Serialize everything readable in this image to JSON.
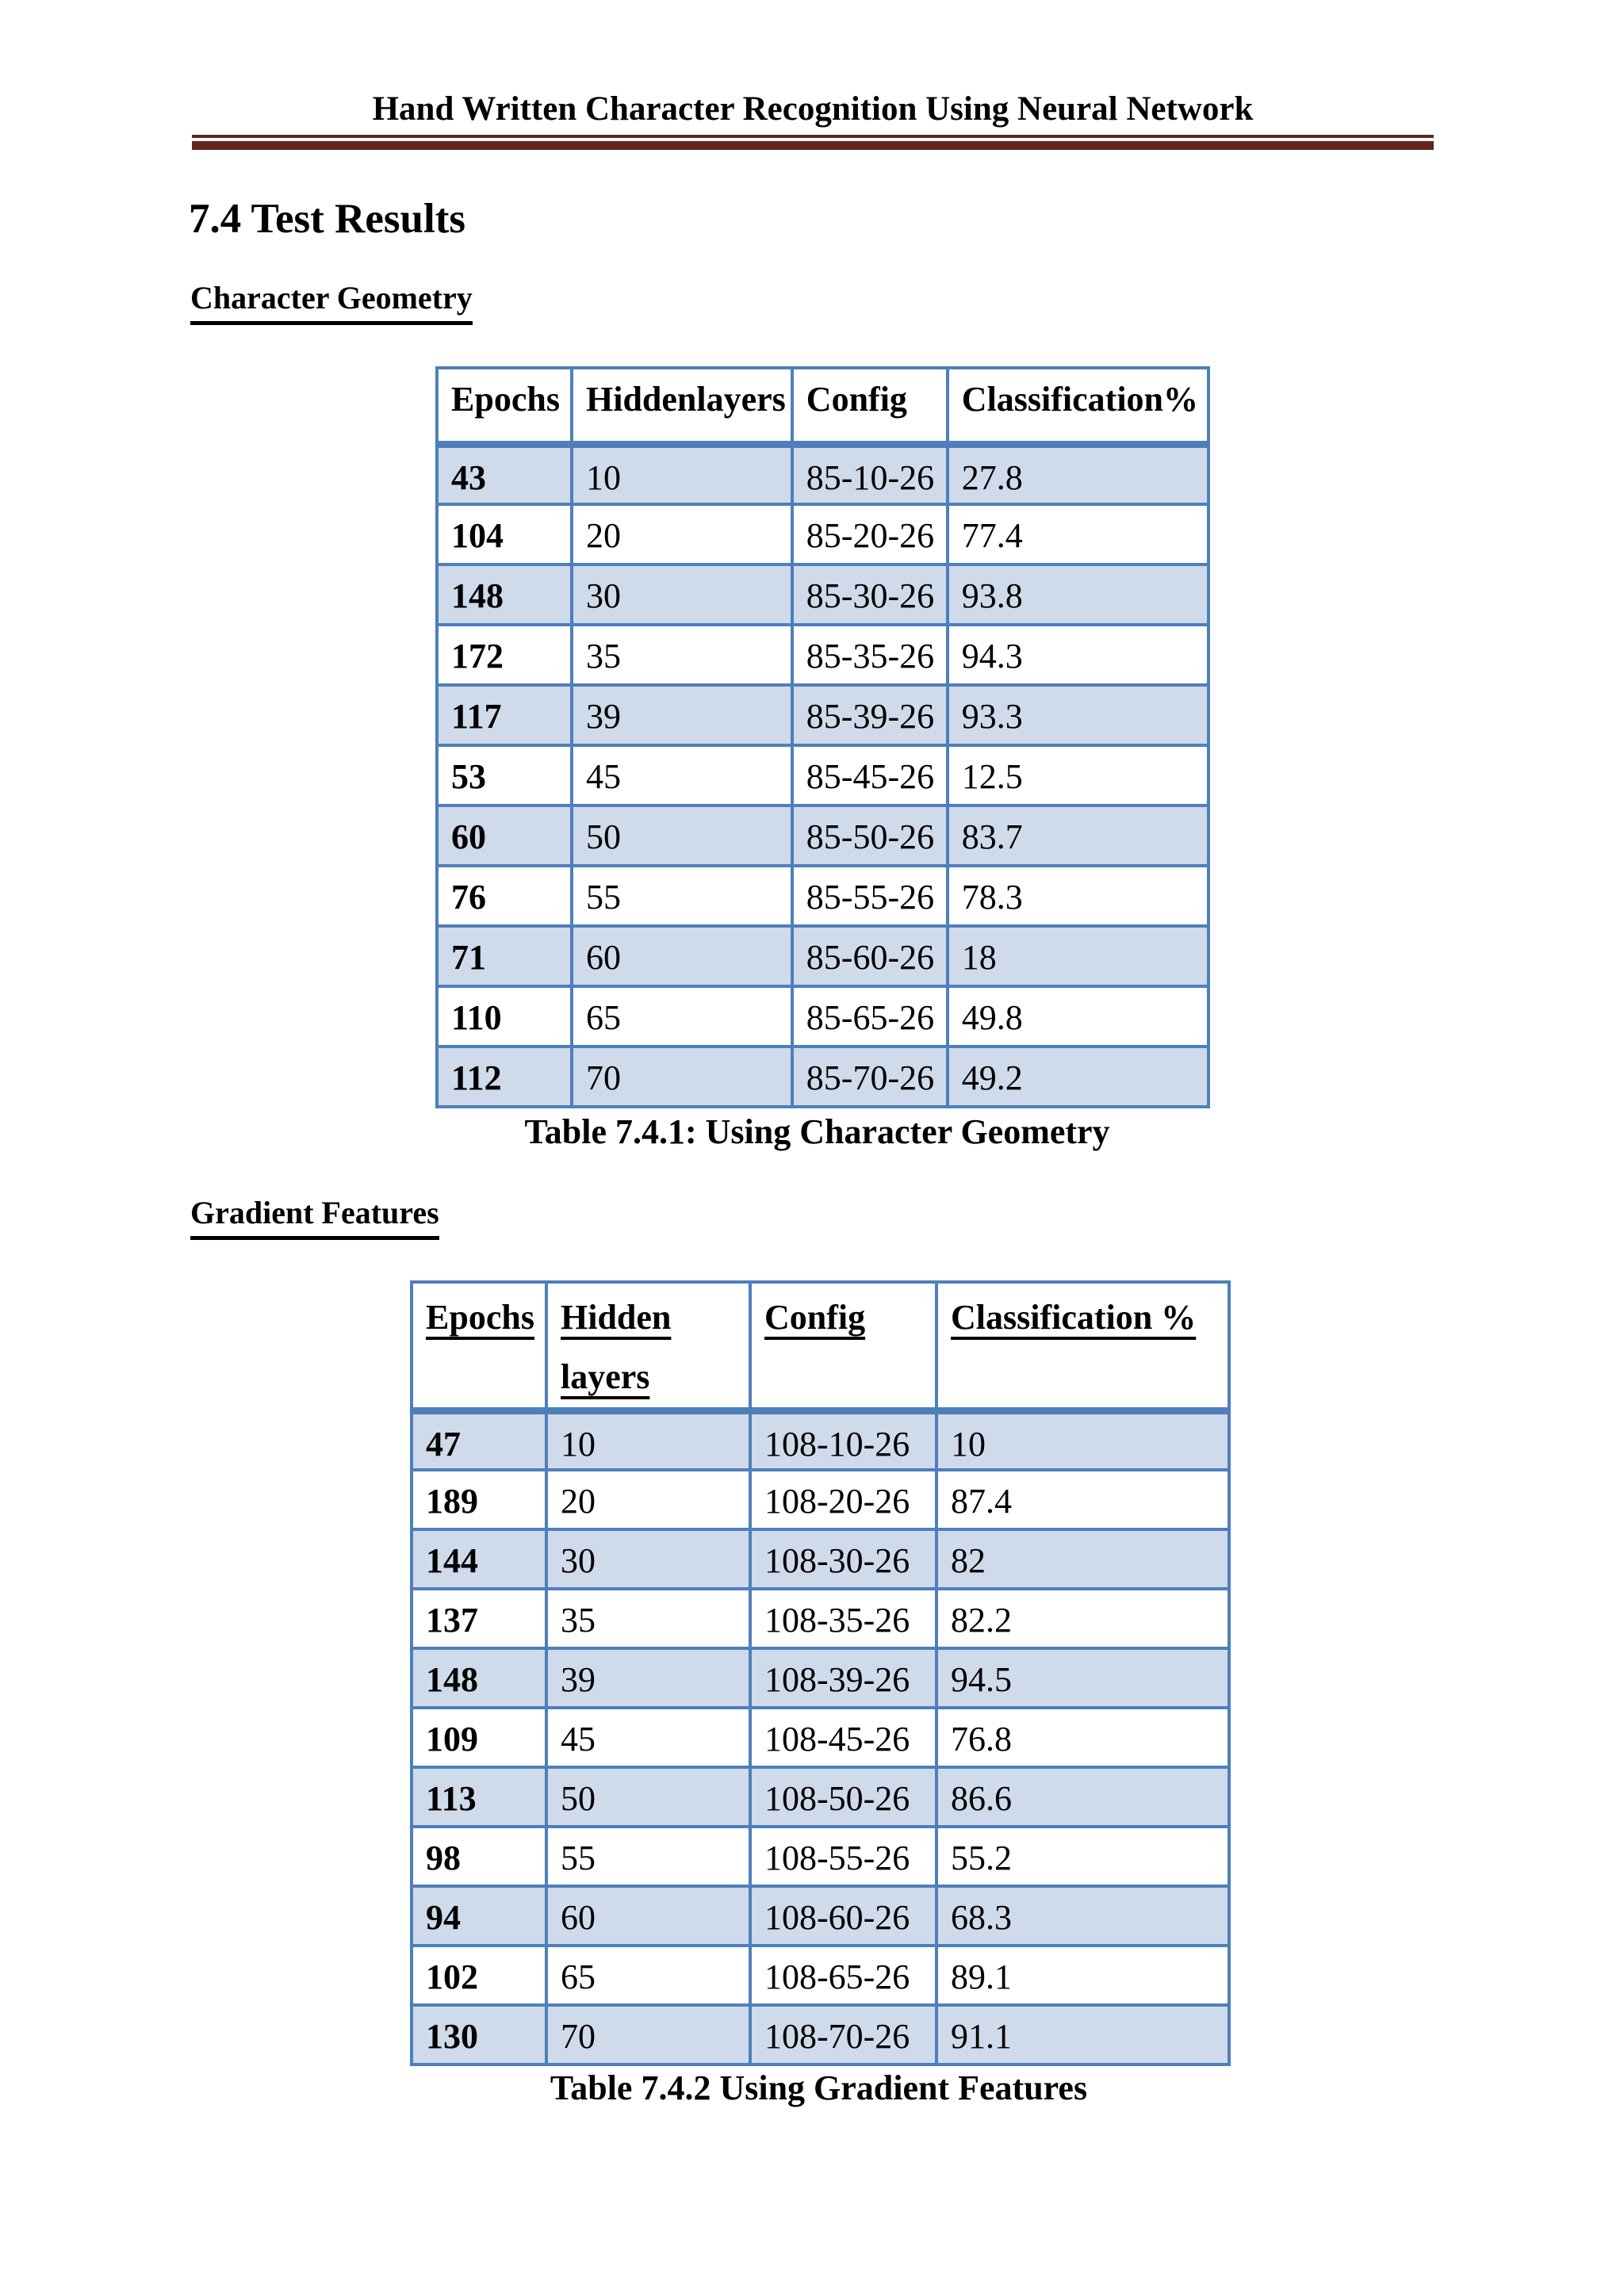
{
  "page_header": {
    "title": "Hand Written Character Recognition Using Neural Network"
  },
  "section": {
    "title": "7.4 Test Results"
  },
  "colors": {
    "header_rule_maroon": "#632423",
    "table_border_blue": "#4e7fbb",
    "row_shade_blue": "#cfdaea",
    "text": "#000000"
  },
  "tables": [
    {
      "subheading": "Character Geometry",
      "headers": [
        "Epochs",
        "Hiddenlayers",
        "Config",
        "Classification%"
      ],
      "underline_headers": false,
      "rows": [
        [
          "43",
          "10",
          "85-10-26",
          "27.8"
        ],
        [
          "104",
          "20",
          "85-20-26",
          "77.4"
        ],
        [
          "148",
          "30",
          "85-30-26",
          "93.8"
        ],
        [
          "172",
          "35",
          "85-35-26",
          "94.3"
        ],
        [
          "117",
          "39",
          "85-39-26",
          "93.3"
        ],
        [
          "53",
          "45",
          "85-45-26",
          "12.5"
        ],
        [
          "60",
          "50",
          "85-50-26",
          "83.7"
        ],
        [
          "76",
          "55",
          "85-55-26",
          "78.3"
        ],
        [
          "71",
          "60",
          "85-60-26",
          "18"
        ],
        [
          "110",
          "65",
          "85-65-26",
          "49.8"
        ],
        [
          "112",
          "70",
          "85-70-26",
          "49.2"
        ]
      ],
      "caption": "Table 7.4.1: Using Character Geometry"
    },
    {
      "subheading": "Gradient Features",
      "headers": [
        "Epochs",
        "Hidden\nlayers",
        "Config",
        "Classification %"
      ],
      "underline_headers": true,
      "rows": [
        [
          "47",
          "10",
          "108-10-26",
          "10"
        ],
        [
          "189",
          "20",
          "108-20-26",
          "87.4"
        ],
        [
          "144",
          "30",
          "108-30-26",
          "82"
        ],
        [
          "137",
          "35",
          "108-35-26",
          "82.2"
        ],
        [
          "148",
          "39",
          "108-39-26",
          "94.5"
        ],
        [
          "109",
          "45",
          "108-45-26",
          "76.8"
        ],
        [
          "113",
          "50",
          "108-50-26",
          "86.6"
        ],
        [
          "98",
          "55",
          "108-55-26",
          "55.2"
        ],
        [
          "94",
          "60",
          "108-60-26",
          "68.3"
        ],
        [
          "102",
          "65",
          "108-65-26",
          "89.1"
        ],
        [
          "130",
          "70",
          "108-70-26",
          "91.1"
        ]
      ],
      "caption": "Table 7.4.2 Using Gradient Features"
    }
  ]
}
